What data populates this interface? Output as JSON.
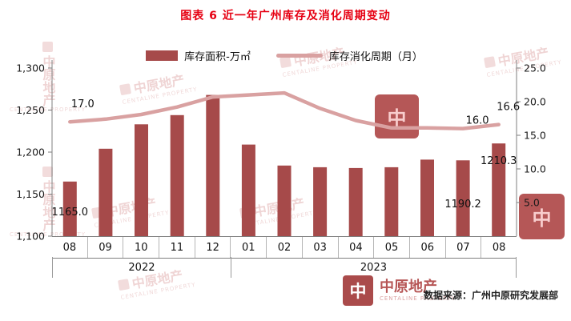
{
  "title": "图表 6 近一年广州库存及消化周期变动",
  "legend": {
    "bar_label": "库存面积-万㎡",
    "line_label": "库存消化周期（月）"
  },
  "source": "数据来源：广州中原研究发展部",
  "watermark": {
    "cn": "中原地产",
    "en": "CENTALINE PROPERTY",
    "logo_glyph": "中"
  },
  "colors": {
    "title": "#e60012",
    "bar": "#a64a4a",
    "line": "#d9a1a1",
    "axis": "#7f7f7f",
    "label": "#111111"
  },
  "chart_data": {
    "type": "bar+line",
    "title": "图表 6 近一年广州库存及消化周期变动",
    "categories": [
      "08",
      "09",
      "10",
      "11",
      "12",
      "01",
      "02",
      "03",
      "04",
      "05",
      "06",
      "07",
      "08"
    ],
    "year_groups": [
      {
        "label": "2022",
        "span": 5
      },
      {
        "label": "2023",
        "span": 8
      }
    ],
    "series": [
      {
        "name": "库存面积-万㎡",
        "type": "bar",
        "axis": "left",
        "values": [
          1165.0,
          1204,
          1233,
          1244,
          1268,
          1209,
          1184,
          1182,
          1181,
          1182,
          1191,
          1190.2,
          1210.3
        ]
      },
      {
        "name": "库存消化周期（月）",
        "type": "line",
        "axis": "right",
        "values": [
          17.0,
          17.4,
          18.1,
          19.2,
          20.7,
          21.0,
          21.3,
          19.0,
          17.2,
          16.1,
          16.1,
          16.0,
          16.6
        ]
      }
    ],
    "left_axis": {
      "ticks": [
        "1,300",
        "1,250",
        "1,200",
        "1,150",
        "1,100"
      ],
      "min": 1100,
      "max": 1300
    },
    "right_axis": {
      "ticks": [
        "25.0",
        "20.0",
        "15.0",
        "10.0",
        "5.0"
      ],
      "min": 0,
      "max": 25
    },
    "data_labels": [
      {
        "series": 0,
        "index": 0,
        "text": "1165.0"
      },
      {
        "series": 0,
        "index": 11,
        "text": "1190.2"
      },
      {
        "series": 0,
        "index": 12,
        "text": "1210.3"
      },
      {
        "series": 1,
        "index": 0,
        "text": "17.0"
      },
      {
        "series": 1,
        "index": 11,
        "text": "16.0"
      },
      {
        "series": 1,
        "index": 12,
        "text": "16.6"
      }
    ],
    "grid": false,
    "legend_position": "top-center"
  }
}
